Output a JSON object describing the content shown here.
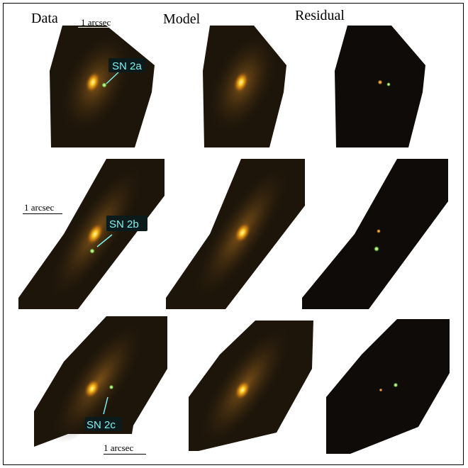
{
  "columns": [
    "Data",
    "Model",
    "Residual"
  ],
  "scale_bars": [
    "1 arcsec",
    "1 arcsec",
    "1 arcsec"
  ],
  "supernovae": [
    "SN 2a",
    "SN 2b",
    "SN 2c"
  ],
  "colors": {
    "sn_label": "#7ff2f2",
    "sn_label_box": "#0b1a1a",
    "galaxy_core": "#ffd23a",
    "galaxy_disk": "#7a4a12",
    "background_dark": "#120d06",
    "sn_point": "#9cf06a"
  }
}
